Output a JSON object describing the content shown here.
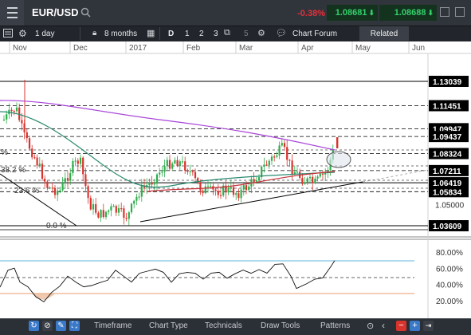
{
  "header": {
    "symbol": "EUR/USD",
    "change_pct": "-0.38%",
    "sell_price": "1.08681",
    "buy_price": "1.08688"
  },
  "toolbar": {
    "interval": "1 day",
    "period": "8 months",
    "granularity": [
      "D",
      "1",
      "2",
      "3"
    ],
    "disabled_five": "5",
    "chart_forum": "Chart Forum",
    "related": "Related"
  },
  "chart_data": {
    "type": "line",
    "x_ticks": [
      "Nov",
      "Dec",
      "2017",
      "Feb",
      "Mar",
      "Apr",
      "May",
      "Jun"
    ],
    "price_levels": [
      "1.13039",
      "1.11451",
      "1.09947",
      "1.09437",
      "1.08324",
      "1.07211",
      "1.06419",
      "1.05834",
      "1.05000",
      "1.03609"
    ],
    "fib_labels": [
      "%",
      "38.2 %",
      "23.6 %",
      "0.0 %"
    ],
    "oscillator_ticks": [
      "80.00%",
      "60.00%",
      "40.00%",
      "20.00%"
    ],
    "colors": {
      "up": "#2fae4c",
      "down": "#d8342e",
      "ma_long": "#a845d8",
      "ma_mid": "#2a8a70",
      "ma_short": "#c8323a",
      "oscillator": "#111111"
    }
  },
  "bottom": {
    "tabs": [
      "Timeframe",
      "Chart Type",
      "Technicals",
      "Draw Tools",
      "Patterns"
    ]
  }
}
